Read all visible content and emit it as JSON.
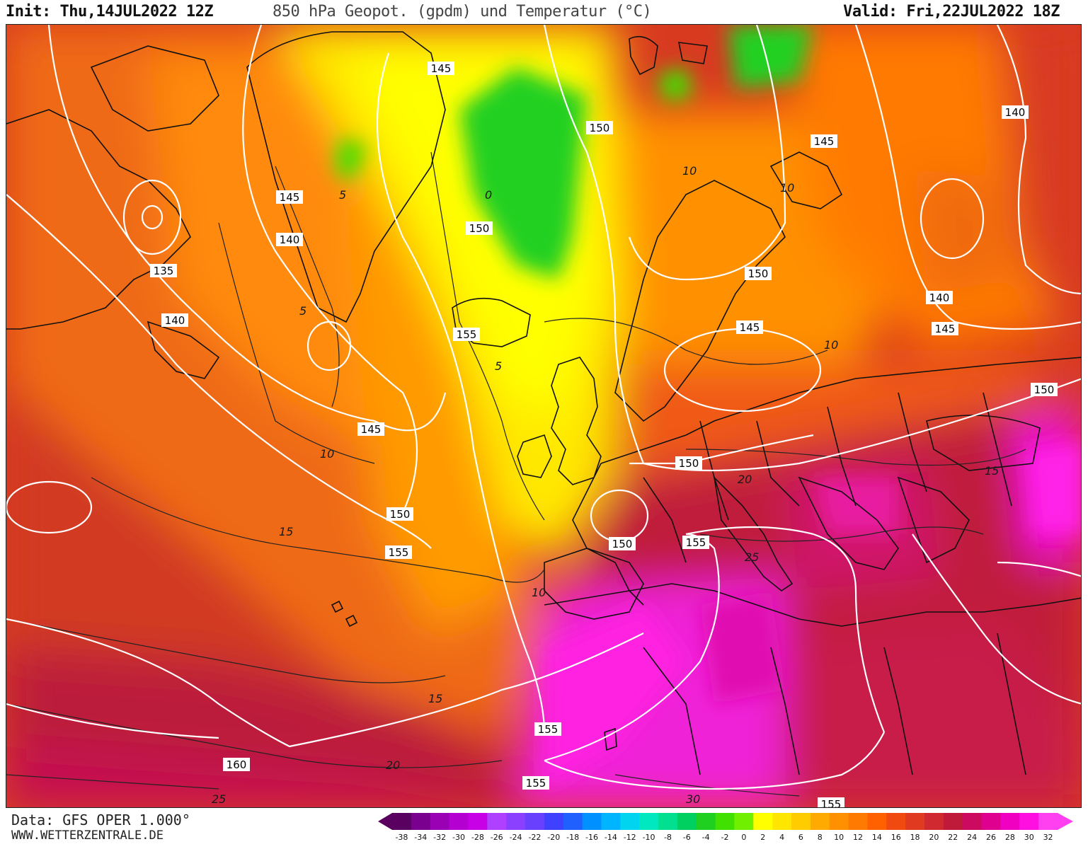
{
  "header": {
    "init": "Init: Thu,14JUL2022 12Z",
    "title": "850 hPa Geopot. (gpdm) und Temperatur (°C)",
    "valid": "Valid: Fri,22JUL2022 18Z"
  },
  "footer": {
    "data_source": "Data: GFS OPER 1.000°",
    "website": "WWW.WETTERZENTRALE.DE"
  },
  "legend": {
    "ticks": [
      "-38",
      "-34",
      "-32",
      "-30",
      "-28",
      "-26",
      "-24",
      "-22",
      "-20",
      "-18",
      "-16",
      "-14",
      "-12",
      "-10",
      "-8",
      "-6",
      "-4",
      "-2",
      "0",
      "2",
      "4",
      "6",
      "8",
      "10",
      "12",
      "14",
      "16",
      "18",
      "20",
      "22",
      "24",
      "26",
      "28",
      "30",
      "32"
    ],
    "colors": [
      "#5a0060",
      "#7a0090",
      "#9a00b4",
      "#b400d0",
      "#c800e6",
      "#b040ff",
      "#8c40ff",
      "#6a40ff",
      "#4040ff",
      "#2060ff",
      "#0090ff",
      "#00b4ff",
      "#00d4ee",
      "#00e8c0",
      "#00e090",
      "#00d060",
      "#20d020",
      "#40e000",
      "#70f000",
      "#ffff00",
      "#ffe600",
      "#ffcc00",
      "#ffaa00",
      "#ff9000",
      "#ff7a00",
      "#ff6000",
      "#f04a10",
      "#e03a20",
      "#d02a30",
      "#c01a3a",
      "#cc0a60",
      "#e00090",
      "#f000c0",
      "#ff10e0",
      "#ff40f0"
    ]
  },
  "geopotential_labels": [
    "145",
    "150",
    "145",
    "140",
    "145",
    "135",
    "140",
    "150",
    "140",
    "155",
    "150",
    "145",
    "145",
    "140",
    "150",
    "145",
    "150",
    "155",
    "150",
    "150",
    "155",
    "155",
    "160",
    "155",
    "155"
  ],
  "temperature_labels": [
    "5",
    "5",
    "5",
    "10",
    "10",
    "10",
    "10",
    "10",
    "15",
    "15",
    "15",
    "20",
    "20",
    "25",
    "25",
    "30",
    "0"
  ]
}
